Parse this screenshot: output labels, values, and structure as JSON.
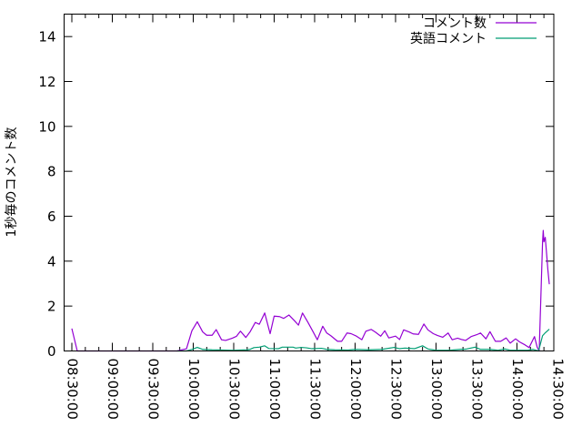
{
  "chart_data": {
    "type": "line",
    "title": "",
    "xlabel": "",
    "ylabel": "1秒毎のコメント数",
    "x_type": "time",
    "xlim": [
      "08:24:16",
      "14:27:20"
    ],
    "ylim": [
      0,
      15
    ],
    "x_ticks": [
      "08:30:00",
      "09:00:00",
      "09:30:00",
      "10:00:00",
      "10:30:00",
      "11:00:00",
      "11:30:00",
      "12:00:00",
      "12:30:00",
      "13:00:00",
      "13:30:00",
      "14:00:00",
      "14:30:00"
    ],
    "y_ticks": [
      0,
      2,
      4,
      6,
      8,
      10,
      12,
      14
    ],
    "grid": false,
    "legend_position": "top-right",
    "series": [
      {
        "name": "コメント数",
        "color": "#9400d3",
        "points": [
          [
            "08:30:00",
            1.0
          ],
          [
            "08:34:00",
            0
          ],
          [
            "09:48:00",
            0
          ],
          [
            "09:55:00",
            0.1
          ],
          [
            "09:59:00",
            0.9
          ],
          [
            "10:03:00",
            1.3
          ],
          [
            "10:07:00",
            0.85
          ],
          [
            "10:10:00",
            0.7
          ],
          [
            "10:14:00",
            0.7
          ],
          [
            "10:17:00",
            0.95
          ],
          [
            "10:21:00",
            0.5
          ],
          [
            "10:24:00",
            0.47
          ],
          [
            "10:29:00",
            0.57
          ],
          [
            "10:32:00",
            0.65
          ],
          [
            "10:35:00",
            0.88
          ],
          [
            "10:39:00",
            0.6
          ],
          [
            "10:42:00",
            0.84
          ],
          [
            "10:46:00",
            1.27
          ],
          [
            "10:49:00",
            1.19
          ],
          [
            "10:53:00",
            1.69
          ],
          [
            "10:57:00",
            0.77
          ],
          [
            "11:00:00",
            1.55
          ],
          [
            "11:04:00",
            1.53
          ],
          [
            "11:07:00",
            1.45
          ],
          [
            "11:11:00",
            1.6
          ],
          [
            "11:15:00",
            1.35
          ],
          [
            "11:18:00",
            1.15
          ],
          [
            "11:21:00",
            1.69
          ],
          [
            "11:25:00",
            1.28
          ],
          [
            "11:29:00",
            0.84
          ],
          [
            "11:32:00",
            0.5
          ],
          [
            "11:36:00",
            1.1
          ],
          [
            "11:39:00",
            0.8
          ],
          [
            "11:42:00",
            0.68
          ],
          [
            "11:47:00",
            0.43
          ],
          [
            "11:50:00",
            0.43
          ],
          [
            "11:54:00",
            0.8
          ],
          [
            "11:57:00",
            0.77
          ],
          [
            "12:01:00",
            0.66
          ],
          [
            "12:05:00",
            0.5
          ],
          [
            "12:08:00",
            0.88
          ],
          [
            "12:12:00",
            0.96
          ],
          [
            "12:15:00",
            0.84
          ],
          [
            "12:19:00",
            0.66
          ],
          [
            "12:22:00",
            0.9
          ],
          [
            "12:25:00",
            0.58
          ],
          [
            "12:30:00",
            0.66
          ],
          [
            "12:33:00",
            0.51
          ],
          [
            "12:36:00",
            0.94
          ],
          [
            "12:40:00",
            0.85
          ],
          [
            "12:43:00",
            0.76
          ],
          [
            "12:47:00",
            0.74
          ],
          [
            "12:51:00",
            1.2
          ],
          [
            "12:54:00",
            0.94
          ],
          [
            "12:58:00",
            0.77
          ],
          [
            "13:01:00",
            0.69
          ],
          [
            "13:05:00",
            0.61
          ],
          [
            "13:09:00",
            0.8
          ],
          [
            "13:12:00",
            0.5
          ],
          [
            "13:16:00",
            0.57
          ],
          [
            "13:19:00",
            0.51
          ],
          [
            "13:22:00",
            0.47
          ],
          [
            "13:26:00",
            0.64
          ],
          [
            "13:30:00",
            0.72
          ],
          [
            "13:33:00",
            0.8
          ],
          [
            "13:37:00",
            0.54
          ],
          [
            "13:40:00",
            0.86
          ],
          [
            "13:44:00",
            0.43
          ],
          [
            "13:48:00",
            0.43
          ],
          [
            "13:52:00",
            0.58
          ],
          [
            "13:55:00",
            0.35
          ],
          [
            "13:59:00",
            0.54
          ],
          [
            "14:02:00",
            0.4
          ],
          [
            "14:06:00",
            0.27
          ],
          [
            "14:09:00",
            0.15
          ],
          [
            "14:13:00",
            0.64
          ],
          [
            "14:15:00",
            0.17
          ],
          [
            "14:16:30",
            0
          ],
          [
            "14:19:00",
            4.86
          ],
          [
            "14:19:30",
            5.37
          ],
          [
            "14:20:00",
            4.86
          ],
          [
            "14:21:00",
            5.06
          ],
          [
            "14:23:00",
            3.57
          ],
          [
            "14:24:00",
            2.97
          ]
        ]
      },
      {
        "name": "英語コメント",
        "color": "#009e73",
        "points": [
          [
            "09:48:00",
            0
          ],
          [
            "09:55:00",
            0
          ],
          [
            "09:59:00",
            0.07
          ],
          [
            "10:03:00",
            0.16
          ],
          [
            "10:07:00",
            0.07
          ],
          [
            "10:14:00",
            0.05
          ],
          [
            "10:22:00",
            0.04
          ],
          [
            "10:30:00",
            0.03
          ],
          [
            "10:40:00",
            0.05
          ],
          [
            "10:42:00",
            0.07
          ],
          [
            "10:45:00",
            0.15
          ],
          [
            "10:49:00",
            0.17
          ],
          [
            "10:53:00",
            0.23
          ],
          [
            "10:56:00",
            0.11
          ],
          [
            "11:03:00",
            0.1
          ],
          [
            "11:06:00",
            0.17
          ],
          [
            "11:14:00",
            0.17
          ],
          [
            "11:16:00",
            0.13
          ],
          [
            "11:20:00",
            0.16
          ],
          [
            "11:24:00",
            0.14
          ],
          [
            "11:28:00",
            0.1
          ],
          [
            "11:35:00",
            0.12
          ],
          [
            "11:39:00",
            0.07
          ],
          [
            "11:45:00",
            0.05
          ],
          [
            "11:55:00",
            0.04
          ],
          [
            "12:00:00",
            0.07
          ],
          [
            "12:10:00",
            0.05
          ],
          [
            "12:20:00",
            0.07
          ],
          [
            "12:29:00",
            0.16
          ],
          [
            "12:33:00",
            0.1
          ],
          [
            "12:37:00",
            0.13
          ],
          [
            "12:44:00",
            0.1
          ],
          [
            "12:50:00",
            0.23
          ],
          [
            "12:54:00",
            0.09
          ],
          [
            "13:00:00",
            0.03
          ],
          [
            "13:10:00",
            0.03
          ],
          [
            "13:18:00",
            0.07
          ],
          [
            "13:22:00",
            0.08
          ],
          [
            "13:29:00",
            0.17
          ],
          [
            "13:33:00",
            0.07
          ],
          [
            "13:40:00",
            0.07
          ],
          [
            "13:46:00",
            0.03
          ],
          [
            "13:51:00",
            0.09
          ],
          [
            "13:55:00",
            0.03
          ],
          [
            "14:02:00",
            0.03
          ],
          [
            "14:08:00",
            0.03
          ],
          [
            "14:12:00",
            0.07
          ],
          [
            "14:16:00",
            0
          ],
          [
            "14:19:00",
            0.68
          ],
          [
            "14:21:00",
            0.81
          ],
          [
            "14:24:00",
            0.97
          ]
        ]
      }
    ]
  }
}
